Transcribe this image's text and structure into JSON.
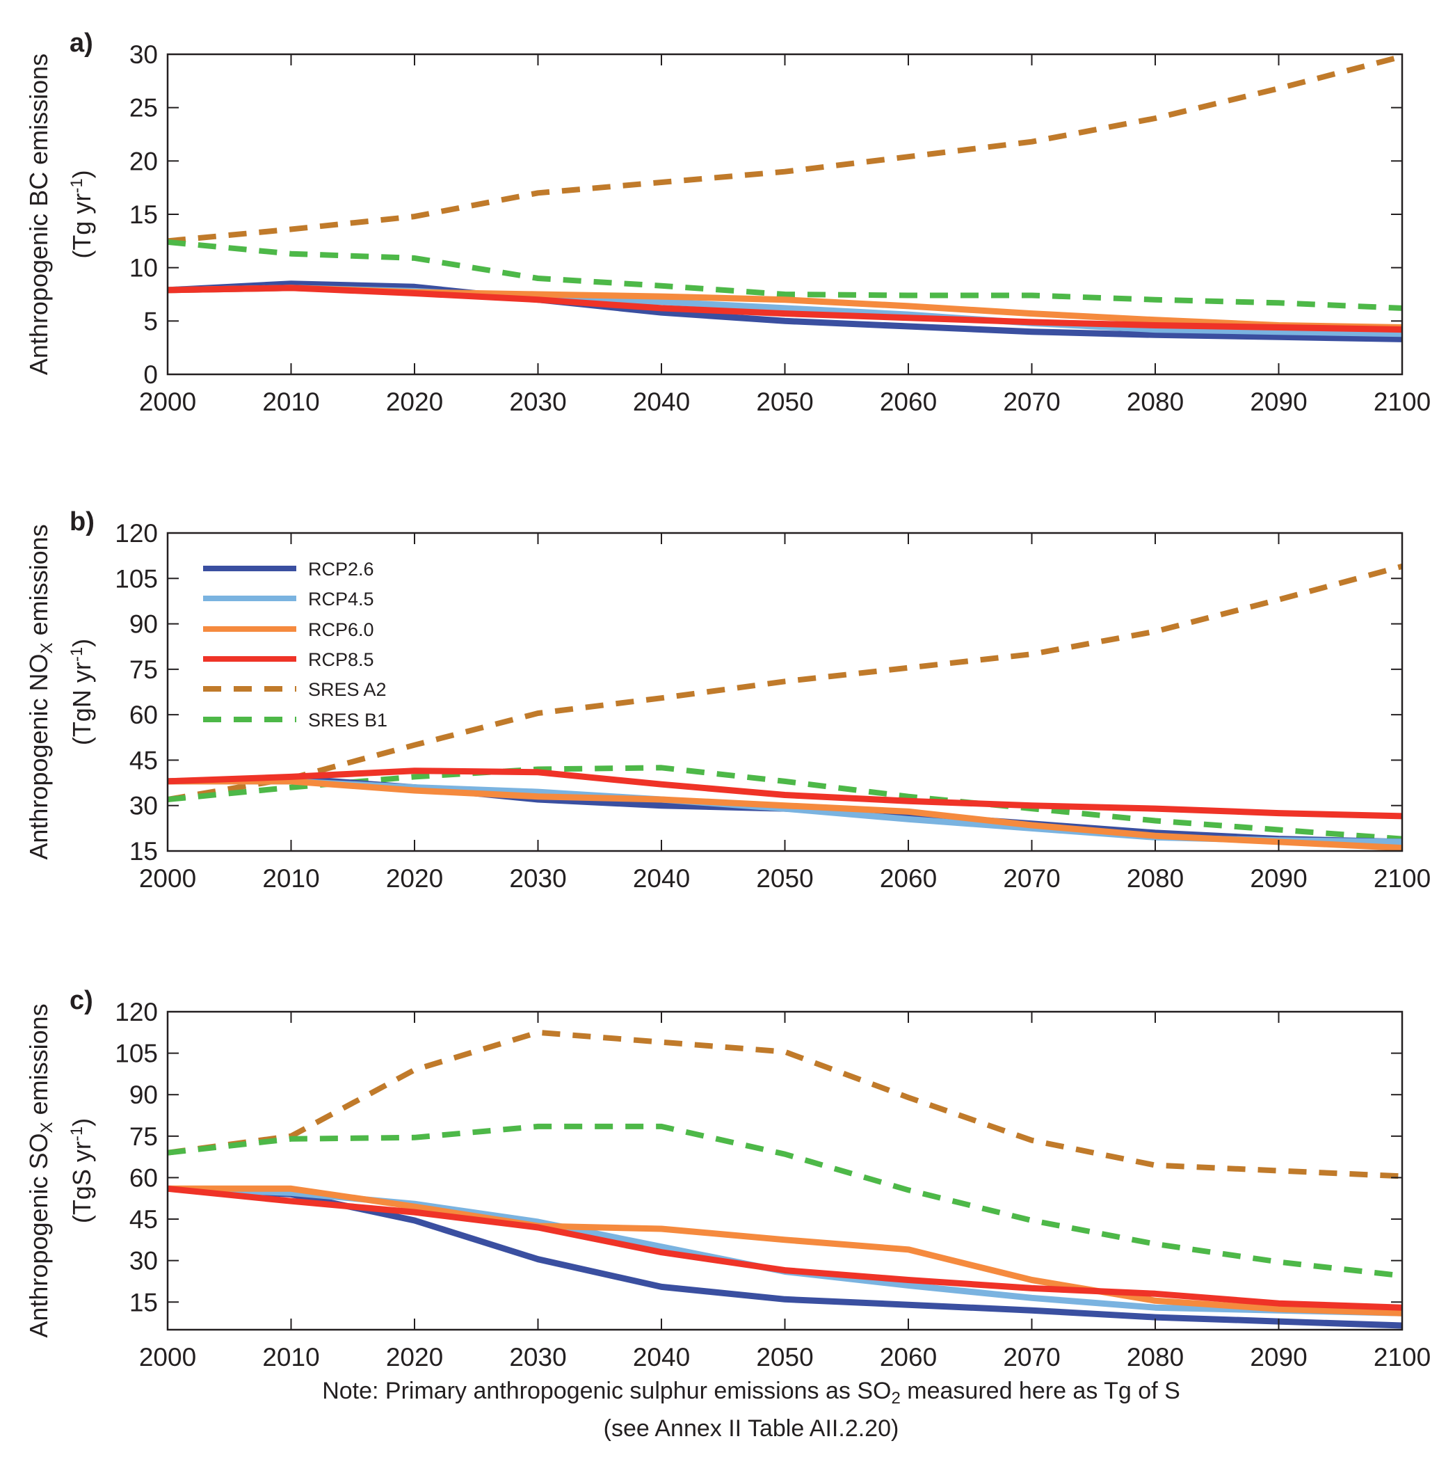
{
  "colors": {
    "RCP2.6": "#3a4fa0",
    "RCP4.5": "#7ab3e0",
    "RCP6.0": "#f58a3e",
    "RCP8.5": "#ef3327",
    "SRES A2": "#c07a2a",
    "SRES B1": "#4db848"
  },
  "legend": {
    "placement": "upper-left of panel b",
    "entries": [
      {
        "name": "RCP2.6",
        "style": "solid"
      },
      {
        "name": "RCP4.5",
        "style": "solid"
      },
      {
        "name": "RCP6.0",
        "style": "solid"
      },
      {
        "name": "RCP8.5",
        "style": "solid"
      },
      {
        "name": "SRES A2",
        "style": "dashed"
      },
      {
        "name": "SRES B1",
        "style": "dashed"
      }
    ]
  },
  "note": {
    "line1_parts": [
      "Note: Primary anthropogenic sulphur emissions as SO",
      "2",
      " measured here as Tg of S"
    ],
    "line2": "(see Annex II Table AII.2.20)"
  },
  "chart_data": [
    {
      "type": "line",
      "panel_label": "a)",
      "ylabel_parts": [
        "Anthropogenic BC emissions"
      ],
      "yunit_parts": [
        "(Tg yr",
        "-1",
        ")"
      ],
      "x": [
        2000,
        2010,
        2020,
        2030,
        2040,
        2050,
        2060,
        2070,
        2080,
        2090,
        2100
      ],
      "xlim": [
        2000,
        2100
      ],
      "ylim": [
        0,
        30
      ],
      "yticks": [
        0,
        5,
        10,
        15,
        20,
        25,
        30
      ],
      "xticks": [
        2000,
        2010,
        2020,
        2030,
        2040,
        2050,
        2060,
        2070,
        2080,
        2090,
        2100
      ],
      "grid": false,
      "series": [
        {
          "name": "SRES A2",
          "values": [
            12.5,
            13.6,
            14.8,
            17.0,
            18.0,
            19.0,
            20.4,
            21.8,
            24.0,
            26.8,
            29.8
          ]
        },
        {
          "name": "SRES B1",
          "values": [
            12.4,
            11.3,
            10.9,
            9.0,
            8.3,
            7.5,
            7.4,
            7.4,
            7.0,
            6.7,
            6.2
          ]
        },
        {
          "name": "RCP2.6",
          "values": [
            7.9,
            8.5,
            8.2,
            7.0,
            5.8,
            5.0,
            4.5,
            4.0,
            3.7,
            3.5,
            3.3
          ]
        },
        {
          "name": "RCP4.5",
          "values": [
            7.9,
            8.1,
            7.8,
            7.2,
            6.8,
            6.2,
            5.6,
            4.8,
            4.2,
            4.0,
            3.8
          ]
        },
        {
          "name": "RCP6.0",
          "values": [
            7.9,
            8.1,
            7.7,
            7.5,
            7.3,
            7.0,
            6.4,
            5.7,
            5.1,
            4.6,
            4.4
          ]
        },
        {
          "name": "RCP8.5",
          "values": [
            7.9,
            8.1,
            7.6,
            7.0,
            6.2,
            5.7,
            5.3,
            4.9,
            4.6,
            4.4,
            4.2
          ]
        }
      ]
    },
    {
      "type": "line",
      "panel_label": "b)",
      "ylabel_parts": [
        "Anthropogenic NO",
        "X",
        " emissions"
      ],
      "yunit_parts": [
        "(TgN yr",
        "-1",
        ")"
      ],
      "x": [
        2000,
        2010,
        2020,
        2030,
        2040,
        2050,
        2060,
        2070,
        2080,
        2090,
        2100
      ],
      "xlim": [
        2000,
        2100
      ],
      "ylim": [
        15,
        120
      ],
      "yticks": [
        15,
        30,
        45,
        60,
        75,
        90,
        105,
        120
      ],
      "xticks": [
        2000,
        2010,
        2020,
        2030,
        2040,
        2050,
        2060,
        2070,
        2080,
        2090,
        2100
      ],
      "grid": false,
      "series": [
        {
          "name": "SRES A2",
          "values": [
            32,
            39,
            50,
            60.5,
            65.5,
            71,
            75.5,
            80,
            87.5,
            98,
            109
          ]
        },
        {
          "name": "SRES B1",
          "values": [
            32,
            36,
            39.5,
            42,
            42.5,
            38,
            33,
            29,
            25,
            22,
            19
          ]
        },
        {
          "name": "RCP2.6",
          "values": [
            38,
            39,
            36,
            32,
            30,
            29,
            27,
            24,
            21,
            19,
            18
          ]
        },
        {
          "name": "RCP4.5",
          "values": [
            38,
            38,
            36,
            34.5,
            32,
            29,
            25.5,
            22.5,
            19.5,
            18.5,
            18
          ]
        },
        {
          "name": "RCP6.0",
          "values": [
            38,
            38,
            35,
            33,
            32,
            30,
            28,
            23.5,
            20,
            18,
            16
          ]
        },
        {
          "name": "RCP8.5",
          "values": [
            38,
            39.5,
            41.5,
            41,
            37,
            33.5,
            31.5,
            30,
            29,
            27.5,
            26.5
          ]
        }
      ]
    },
    {
      "type": "line",
      "panel_label": "c)",
      "ylabel_parts": [
        "Anthropogenic SO",
        "X",
        " emissions"
      ],
      "yunit_parts": [
        "(TgS yr",
        "-1",
        ")"
      ],
      "x": [
        2000,
        2010,
        2020,
        2030,
        2040,
        2050,
        2060,
        2070,
        2080,
        2090,
        2100
      ],
      "xlim": [
        2000,
        2100
      ],
      "ylim": [
        5,
        120
      ],
      "yticks": [
        15,
        30,
        45,
        60,
        75,
        90,
        105,
        120
      ],
      "xticks": [
        2000,
        2010,
        2020,
        2030,
        2040,
        2050,
        2060,
        2070,
        2080,
        2090,
        2100
      ],
      "grid": false,
      "series": [
        {
          "name": "SRES A2",
          "values": [
            69,
            75,
            99,
            112.5,
            109,
            105.5,
            89,
            73.5,
            64.5,
            62.5,
            60.5
          ]
        },
        {
          "name": "SRES B1",
          "values": [
            69,
            74,
            74.5,
            78.5,
            78.5,
            68.5,
            55.5,
            44.5,
            36,
            29.5,
            24.5
          ]
        },
        {
          "name": "RCP2.6",
          "values": [
            56,
            54,
            44.5,
            30.5,
            20.5,
            16,
            14,
            12,
            9.5,
            8,
            6.5
          ]
        },
        {
          "name": "RCP4.5",
          "values": [
            56,
            54.5,
            50.5,
            44,
            35,
            26,
            21,
            16.5,
            13,
            12,
            11
          ]
        },
        {
          "name": "RCP6.0",
          "values": [
            56,
            56,
            49.5,
            42.5,
            41.5,
            37.5,
            34,
            23,
            15.5,
            12.5,
            11
          ]
        },
        {
          "name": "RCP8.5",
          "values": [
            56,
            51.5,
            47.5,
            42,
            33,
            26.5,
            23,
            20,
            18,
            14.5,
            13
          ]
        }
      ]
    }
  ]
}
